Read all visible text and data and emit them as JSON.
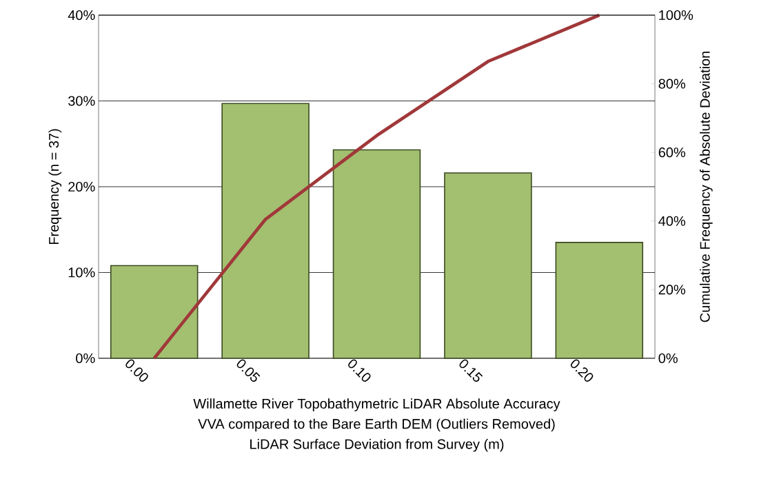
{
  "chart_data": {
    "type": "bar",
    "title": "Willamette River Topobathymetric  LiDAR Absolute Accuracy",
    "subtitle": "VVA compared to the Bare Earth DEM (Outliers Removed)",
    "xlabel": "LiDAR Surface Deviation from Survey (m)",
    "ylabel": "Frequency (n = 37)",
    "y2label": "Cumulative Frequency of Absolute Deviation",
    "categories": [
      "0.00",
      "0.05",
      "0.10",
      "0.15",
      "0.20"
    ],
    "series": [
      {
        "color": "#a3bf70",
        "values": [
          10.8,
          29.7,
          24.3,
          21.6,
          13.5
        ]
      },
      {
        "type": "line",
        "axis": "y2",
        "color": "#a0383a",
        "values": [
          0,
          40.5,
          64.9,
          86.5,
          100
        ]
      }
    ],
    "ylim": [
      0,
      40
    ],
    "yticks": [
      {
        "value": 0,
        "label": "0%"
      },
      {
        "value": 10,
        "label": "10%"
      },
      {
        "value": 20,
        "label": "20%"
      },
      {
        "value": 30,
        "label": "30%"
      },
      {
        "value": 40,
        "label": "40%"
      }
    ],
    "y2lim": [
      0,
      100
    ],
    "y2ticks": [
      {
        "value": 0,
        "label": "0%"
      },
      {
        "value": 20,
        "label": "20%"
      },
      {
        "value": 40,
        "label": "40%"
      },
      {
        "value": 60,
        "label": "60%"
      },
      {
        "value": 80,
        "label": "80%"
      },
      {
        "value": 100,
        "label": "100%"
      }
    ],
    "grid": "y",
    "marker": "none",
    "line_style": "solid"
  }
}
